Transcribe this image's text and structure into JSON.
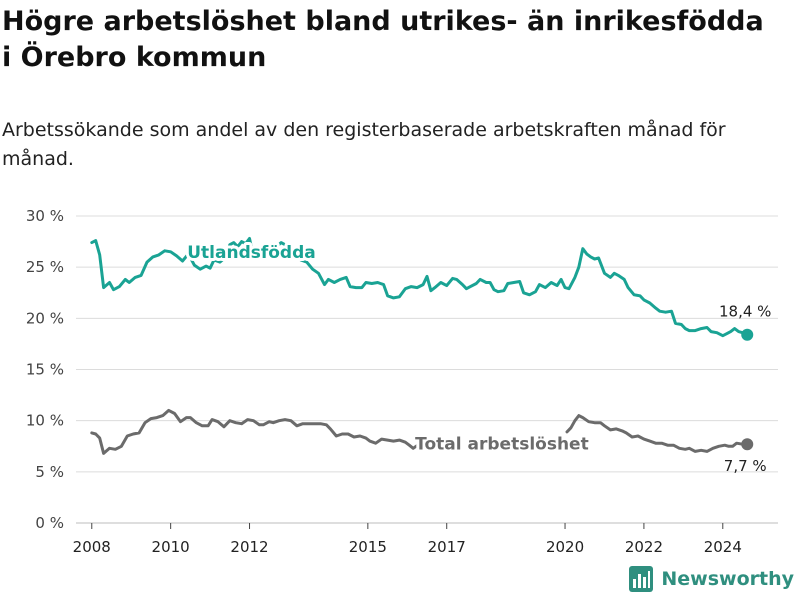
{
  "title": "Högre arbetslöshet bland utrikes- än inrikesfödda i Örebro kommun",
  "subtitle": "Arbetssökande som andel av den registerbaserade arbetskraften månad för månad.",
  "brand": {
    "name": "Newsworthy",
    "color": "#2f8f7f"
  },
  "chart_data": {
    "type": "line",
    "ylim": [
      0,
      30
    ],
    "y_ticks": [
      0,
      5,
      10,
      15,
      20,
      25,
      30
    ],
    "y_tick_labels": [
      "0 %",
      "5 %",
      "10 %",
      "15 %",
      "20 %",
      "25 %",
      "30 %"
    ],
    "x_range": [
      2007.6,
      2025.4
    ],
    "x_ticks": [
      2008,
      2010,
      2012,
      2015,
      2017,
      2020,
      2022,
      2024
    ],
    "x_tick_labels": [
      "2008",
      "2010",
      "2012",
      "2015",
      "2017",
      "2020",
      "2022",
      "2024"
    ],
    "grid": true,
    "series": [
      {
        "name": "Utlandsfödda",
        "color": "#1aa394",
        "end_label": "18,4 %",
        "points": [
          [
            2008.0,
            27.4
          ],
          [
            2008.1,
            27.6
          ],
          [
            2008.2,
            26.2
          ],
          [
            2008.3,
            23.0
          ],
          [
            2008.45,
            23.5
          ],
          [
            2008.55,
            22.8
          ],
          [
            2008.7,
            23.1
          ],
          [
            2008.85,
            23.8
          ],
          [
            2008.95,
            23.5
          ],
          [
            2009.1,
            24.0
          ],
          [
            2009.25,
            24.2
          ],
          [
            2009.4,
            25.5
          ],
          [
            2009.55,
            26.0
          ],
          [
            2009.7,
            26.2
          ],
          [
            2009.85,
            26.6
          ],
          [
            2010.0,
            26.5
          ],
          [
            2010.15,
            26.1
          ],
          [
            2010.3,
            25.6
          ],
          [
            2010.45,
            26.3
          ],
          [
            2010.6,
            25.2
          ],
          [
            2010.75,
            24.8
          ],
          [
            2010.9,
            25.1
          ],
          [
            2011.0,
            24.9
          ],
          [
            2011.1,
            25.7
          ],
          [
            2011.25,
            25.5
          ],
          [
            2011.4,
            26.0
          ],
          [
            2011.5,
            27.2
          ],
          [
            2011.6,
            27.4
          ],
          [
            2011.7,
            27.0
          ],
          [
            2011.8,
            27.5
          ],
          [
            2011.9,
            27.3
          ],
          [
            2012.0,
            27.8
          ],
          [
            2012.05,
            26.9
          ],
          null,
          [
            2012.65,
            26.9
          ],
          [
            2012.8,
            27.4
          ],
          [
            2012.9,
            27.2
          ],
          null,
          [
            2013.3,
            25.7
          ],
          [
            2013.45,
            25.5
          ],
          [
            2013.6,
            24.8
          ],
          [
            2013.75,
            24.4
          ],
          [
            2013.9,
            23.3
          ],
          [
            2014.0,
            23.8
          ],
          [
            2014.15,
            23.5
          ],
          [
            2014.3,
            23.8
          ],
          [
            2014.45,
            24.0
          ],
          [
            2014.55,
            23.1
          ],
          [
            2014.7,
            23.0
          ],
          [
            2014.85,
            23.0
          ],
          [
            2014.95,
            23.5
          ],
          [
            2015.1,
            23.4
          ],
          [
            2015.25,
            23.5
          ],
          [
            2015.4,
            23.3
          ],
          [
            2015.5,
            22.2
          ],
          [
            2015.65,
            22.0
          ],
          [
            2015.8,
            22.1
          ],
          [
            2015.95,
            22.9
          ],
          [
            2016.1,
            23.1
          ],
          [
            2016.25,
            23.0
          ],
          [
            2016.4,
            23.3
          ],
          [
            2016.5,
            24.1
          ],
          [
            2016.6,
            22.7
          ],
          [
            2016.7,
            23.0
          ],
          [
            2016.85,
            23.5
          ],
          [
            2017.0,
            23.2
          ],
          [
            2017.15,
            23.9
          ],
          [
            2017.25,
            23.8
          ],
          [
            2017.4,
            23.3
          ],
          [
            2017.5,
            22.9
          ],
          [
            2017.6,
            23.1
          ],
          [
            2017.75,
            23.4
          ],
          [
            2017.85,
            23.8
          ],
          [
            2018.0,
            23.5
          ],
          [
            2018.1,
            23.5
          ],
          [
            2018.2,
            22.8
          ],
          [
            2018.3,
            22.6
          ],
          [
            2018.45,
            22.7
          ],
          [
            2018.55,
            23.4
          ],
          [
            2018.7,
            23.5
          ],
          [
            2018.85,
            23.6
          ],
          [
            2018.95,
            22.5
          ],
          [
            2019.1,
            22.3
          ],
          [
            2019.25,
            22.6
          ],
          [
            2019.35,
            23.3
          ],
          [
            2019.5,
            23.0
          ],
          [
            2019.65,
            23.5
          ],
          [
            2019.8,
            23.2
          ],
          [
            2019.9,
            23.8
          ],
          [
            2020.0,
            23.0
          ],
          [
            2020.1,
            22.9
          ],
          [
            2020.25,
            24.0
          ],
          [
            2020.35,
            25.0
          ],
          [
            2020.45,
            26.8
          ],
          [
            2020.55,
            26.3
          ],
          [
            2020.65,
            26.0
          ],
          [
            2020.75,
            25.8
          ],
          [
            2020.85,
            25.9
          ],
          [
            2021.0,
            24.4
          ],
          [
            2021.15,
            24.0
          ],
          [
            2021.25,
            24.4
          ],
          [
            2021.35,
            24.2
          ],
          [
            2021.5,
            23.8
          ],
          [
            2021.6,
            23.0
          ],
          [
            2021.75,
            22.3
          ],
          [
            2021.9,
            22.2
          ],
          [
            2022.0,
            21.8
          ],
          [
            2022.15,
            21.5
          ],
          [
            2022.3,
            21.0
          ],
          [
            2022.4,
            20.7
          ],
          [
            2022.55,
            20.6
          ],
          [
            2022.7,
            20.7
          ],
          [
            2022.8,
            19.5
          ],
          [
            2022.95,
            19.4
          ],
          [
            2023.05,
            19.0
          ],
          [
            2023.15,
            18.8
          ],
          [
            2023.3,
            18.8
          ],
          [
            2023.45,
            19.0
          ],
          [
            2023.6,
            19.1
          ],
          [
            2023.7,
            18.7
          ],
          [
            2023.85,
            18.6
          ],
          [
            2024.0,
            18.3
          ],
          [
            2024.1,
            18.5
          ],
          [
            2024.2,
            18.7
          ],
          [
            2024.3,
            19.0
          ],
          [
            2024.4,
            18.7
          ],
          [
            2024.5,
            18.6
          ],
          [
            2024.62,
            18.4
          ]
        ]
      },
      {
        "name": "Total arbetslöshet",
        "color": "#6b6b6b",
        "end_label": "7,7 %",
        "points": [
          [
            2008.0,
            8.8
          ],
          [
            2008.1,
            8.7
          ],
          [
            2008.2,
            8.3
          ],
          [
            2008.3,
            6.8
          ],
          [
            2008.45,
            7.3
          ],
          [
            2008.6,
            7.2
          ],
          [
            2008.75,
            7.5
          ],
          [
            2008.9,
            8.5
          ],
          [
            2009.05,
            8.7
          ],
          [
            2009.2,
            8.8
          ],
          [
            2009.35,
            9.8
          ],
          [
            2009.5,
            10.2
          ],
          [
            2009.65,
            10.3
          ],
          [
            2009.8,
            10.5
          ],
          [
            2009.95,
            11.0
          ],
          [
            2010.1,
            10.7
          ],
          [
            2010.25,
            9.9
          ],
          [
            2010.4,
            10.3
          ],
          [
            2010.5,
            10.3
          ],
          [
            2010.65,
            9.8
          ],
          [
            2010.8,
            9.5
          ],
          [
            2010.95,
            9.5
          ],
          [
            2011.05,
            10.1
          ],
          [
            2011.2,
            9.9
          ],
          [
            2011.35,
            9.4
          ],
          [
            2011.5,
            10.0
          ],
          [
            2011.65,
            9.8
          ],
          [
            2011.8,
            9.7
          ],
          [
            2011.95,
            10.1
          ],
          [
            2012.1,
            10.0
          ],
          [
            2012.25,
            9.6
          ],
          [
            2012.35,
            9.6
          ],
          [
            2012.5,
            9.9
          ],
          [
            2012.6,
            9.8
          ],
          [
            2012.75,
            10.0
          ],
          [
            2012.9,
            10.1
          ],
          [
            2013.05,
            10.0
          ],
          [
            2013.2,
            9.5
          ],
          [
            2013.35,
            9.7
          ],
          [
            2013.5,
            9.7
          ],
          [
            2013.65,
            9.7
          ],
          [
            2013.8,
            9.7
          ],
          [
            2013.95,
            9.6
          ],
          [
            2014.05,
            9.2
          ],
          [
            2014.2,
            8.5
          ],
          [
            2014.35,
            8.7
          ],
          [
            2014.5,
            8.7
          ],
          [
            2014.65,
            8.4
          ],
          [
            2014.8,
            8.5
          ],
          [
            2014.95,
            8.3
          ],
          [
            2015.05,
            8.0
          ],
          [
            2015.2,
            7.8
          ],
          [
            2015.35,
            8.2
          ],
          [
            2015.5,
            8.1
          ],
          [
            2015.65,
            8.0
          ],
          [
            2015.8,
            8.1
          ],
          [
            2015.95,
            7.9
          ],
          [
            2016.05,
            7.6
          ],
          [
            2016.15,
            7.3
          ],
          [
            2016.3,
            7.7
          ],
          [
            2016.45,
            7.6
          ],
          null,
          [
            2020.05,
            8.9
          ],
          [
            2020.15,
            9.3
          ],
          [
            2020.25,
            10.0
          ],
          [
            2020.35,
            10.5
          ],
          [
            2020.45,
            10.3
          ],
          [
            2020.6,
            9.9
          ],
          [
            2020.75,
            9.8
          ],
          [
            2020.9,
            9.8
          ],
          [
            2021.0,
            9.5
          ],
          [
            2021.15,
            9.1
          ],
          [
            2021.3,
            9.2
          ],
          [
            2021.45,
            9.0
          ],
          [
            2021.55,
            8.8
          ],
          [
            2021.7,
            8.4
          ],
          [
            2021.85,
            8.5
          ],
          [
            2022.0,
            8.2
          ],
          [
            2022.15,
            8.0
          ],
          [
            2022.3,
            7.8
          ],
          [
            2022.45,
            7.8
          ],
          [
            2022.6,
            7.6
          ],
          [
            2022.75,
            7.6
          ],
          [
            2022.9,
            7.3
          ],
          [
            2023.05,
            7.2
          ],
          [
            2023.15,
            7.3
          ],
          [
            2023.3,
            7.0
          ],
          [
            2023.45,
            7.1
          ],
          [
            2023.6,
            7.0
          ],
          [
            2023.75,
            7.3
          ],
          [
            2023.9,
            7.5
          ],
          [
            2024.05,
            7.6
          ],
          [
            2024.15,
            7.5
          ],
          [
            2024.25,
            7.5
          ],
          [
            2024.35,
            7.8
          ],
          [
            2024.5,
            7.7
          ],
          [
            2024.62,
            7.7
          ]
        ]
      }
    ]
  }
}
